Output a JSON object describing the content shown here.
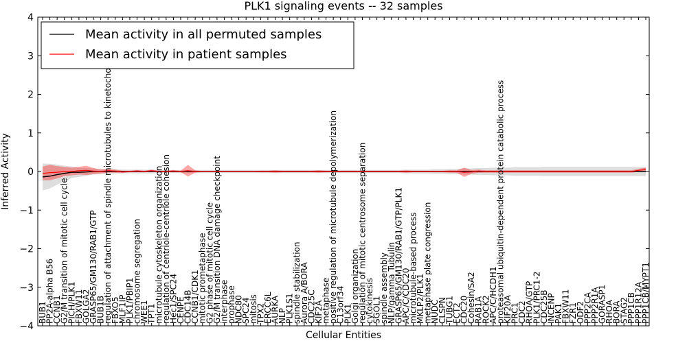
{
  "chart_data": {
    "type": "line",
    "title": "PLK1 signaling events -- 32 samples",
    "xlabel": "Cellular Entities",
    "ylabel": "Inferred Activity",
    "ylim": [
      -4,
      4
    ],
    "yticks": [
      -4,
      -3,
      -2,
      -1,
      0,
      1,
      2,
      3,
      4
    ],
    "legend": {
      "location": "top-left",
      "entries": [
        "Mean activity in all permuted samples",
        "Mean activity in patient samples"
      ]
    },
    "categories": [
      "BUB1",
      "PP2A-alpha B56",
      "CCNB1",
      "G2/M transition of mitotic cell cycle",
      "PICH/PLK1",
      "FBXW11",
      "GOLGA2",
      "GRASP65/GM130/RAB1/GTP",
      "BUB1B",
      "regulation of attachment of spindle microtubules to kinetochore",
      "FBXO5",
      "MLF1IP",
      "PLK1/PBIP1",
      "chromosome segregation",
      "WEE1",
      "TPT1",
      "microtubule cytoskeleton organization",
      "regulation of centriole-centriole cohesion",
      "Hec1/SPC24",
      "CENPE",
      "CDC14B",
      "CCNB1/CDK1",
      "mitotic prometaphase",
      "G2 phase of mitotic cell cycle",
      "G2/M transition DNA damage checkpoint",
      "interphase",
      "prophase",
      "NDC80",
      "SPC24",
      "mitosis",
      "TPX2",
      "ERCC6L",
      "AURKA",
      "NLP",
      "PLK1S1",
      "spindle stabilization",
      "Aurora A/BORA",
      "CDC25C",
      "KIF2A",
      "metaphase",
      "positive regulation of microtubule depolymerization",
      "C13orf34",
      "PLK1",
      "Golgi organization",
      "regulation of mitotic centrosome separation",
      "cytokinesis",
      "SGOL1",
      "spindle assembly",
      "NLP/gamma Tubulin",
      "GRASP65/GM130/RAB1/GTP/PLK1",
      "APC/C/CDC20",
      "microtubule-based process",
      "MKLP2/PLK1",
      "metaphase plate congression",
      "NUDC",
      "CLSPN",
      "TUBG1",
      "ECT2",
      "CDC20",
      "Cohesin/SA2",
      "RAB1A",
      "ROCK2",
      "APC/C/HCDH1",
      "proteasomal ubiquitin-dependent protein catabolic process",
      "KIF20A",
      "PRC1",
      "CDC2",
      "RHOA/GTP",
      "PLK1/PRC1-2",
      "CDC25B",
      "INCENP",
      "PAK1",
      "FBXW11",
      "FZR1",
      "ODF2",
      "PPP2CA",
      "PPP2R1A",
      "GORASP1",
      "RHOA",
      "BORA",
      "STAG2",
      "PPP1CB",
      "PPP1R12A",
      "PPP1CB/MYPT1"
    ],
    "series": [
      {
        "name": "Mean activity in all permuted samples",
        "color": "#000000",
        "values": [
          -0.14,
          -0.12,
          -0.08,
          -0.05,
          -0.02,
          -0.02,
          -0.01,
          0.0,
          0.0,
          0.0,
          0.0,
          0.0,
          0.0,
          0.0,
          0.0,
          0.0,
          0.0,
          0.0,
          0.0,
          0.0,
          0.0,
          0.0,
          0.0,
          0.0,
          0.0,
          0.0,
          0.0,
          0.0,
          0.0,
          0.0,
          0.0,
          0.0,
          0.0,
          0.0,
          0.0,
          0.0,
          0.0,
          0.0,
          0.0,
          0.0,
          0.0,
          0.0,
          0.0,
          0.0,
          0.0,
          0.0,
          0.0,
          0.0,
          0.0,
          0.0,
          0.0,
          0.0,
          0.0,
          0.0,
          0.0,
          0.0,
          0.0,
          0.0,
          0.0,
          0.0,
          0.0,
          0.0,
          0.0,
          0.0,
          0.0,
          0.0,
          0.0,
          0.0,
          0.0,
          0.0,
          0.0,
          0.0,
          0.0,
          0.0,
          0.0,
          0.0,
          0.0,
          0.0,
          0.0,
          0.0,
          0.0,
          0.0,
          0.0,
          0.0
        ],
        "band": [
          0.35,
          0.32,
          0.26,
          0.2,
          0.15,
          0.12,
          0.1,
          0.08,
          0.07,
          0.06,
          0.06,
          0.05,
          0.05,
          0.05,
          0.05,
          0.05,
          0.04,
          0.04,
          0.04,
          0.04,
          0.04,
          0.04,
          0.04,
          0.04,
          0.04,
          0.04,
          0.04,
          0.04,
          0.04,
          0.04,
          0.04,
          0.04,
          0.04,
          0.04,
          0.04,
          0.04,
          0.04,
          0.04,
          0.04,
          0.04,
          0.04,
          0.04,
          0.04,
          0.04,
          0.04,
          0.04,
          0.04,
          0.04,
          0.04,
          0.04,
          0.05,
          0.05,
          0.05,
          0.05,
          0.06,
          0.06,
          0.07,
          0.07,
          0.08,
          0.08,
          0.09,
          0.09,
          0.1,
          0.1,
          0.1,
          0.11,
          0.11,
          0.11,
          0.11,
          0.12,
          0.12,
          0.12,
          0.12,
          0.12,
          0.12,
          0.12,
          0.12,
          0.12,
          0.12,
          0.12,
          0.12,
          0.12,
          0.12,
          0.12
        ]
      },
      {
        "name": "Mean activity in patient samples",
        "color": "#ff0000",
        "values": [
          -0.05,
          -0.03,
          -0.02,
          0.0,
          0.0,
          0.02,
          0.03,
          0.01,
          0.0,
          0.02,
          0.01,
          -0.01,
          0.0,
          0.01,
          0.0,
          0.02,
          0.0,
          0.0,
          0.01,
          0.0,
          0.02,
          0.0,
          0.0,
          0.0,
          0.0,
          0.0,
          0.0,
          0.0,
          0.0,
          0.0,
          0.0,
          0.0,
          0.0,
          0.0,
          0.0,
          0.0,
          0.0,
          0.0,
          0.0,
          0.0,
          0.0,
          0.0,
          0.0,
          0.0,
          0.0,
          0.0,
          0.0,
          0.0,
          0.0,
          0.0,
          0.0,
          0.0,
          0.0,
          0.0,
          0.0,
          0.0,
          0.0,
          0.0,
          -0.02,
          -0.01,
          0.01,
          0.0,
          0.0,
          0.0,
          0.0,
          0.0,
          0.0,
          0.0,
          0.0,
          0.0,
          0.0,
          0.0,
          0.0,
          0.0,
          0.0,
          0.0,
          0.0,
          0.0,
          0.0,
          0.0,
          0.0,
          0.0,
          0.03,
          0.05
        ],
        "band": [
          0.18,
          0.2,
          0.16,
          0.12,
          0.1,
          0.1,
          0.12,
          0.08,
          0.05,
          0.05,
          0.04,
          0.03,
          0.02,
          0.03,
          0.02,
          0.03,
          0.02,
          0.02,
          0.03,
          0.02,
          0.15,
          0.03,
          0.01,
          0.01,
          0.01,
          0.01,
          0.01,
          0.01,
          0.01,
          0.01,
          0.02,
          0.02,
          0.03,
          0.02,
          0.02,
          0.02,
          0.02,
          0.02,
          0.03,
          0.02,
          0.02,
          0.02,
          0.02,
          0.02,
          0.02,
          0.02,
          0.02,
          0.02,
          0.02,
          0.02,
          0.03,
          0.02,
          0.02,
          0.02,
          0.02,
          0.02,
          0.03,
          0.03,
          0.12,
          0.05,
          0.04,
          0.03,
          0.03,
          0.03,
          0.03,
          0.03,
          0.03,
          0.03,
          0.03,
          0.03,
          0.03,
          0.03,
          0.03,
          0.03,
          0.03,
          0.03,
          0.03,
          0.03,
          0.03,
          0.03,
          0.03,
          0.03,
          0.04,
          0.05
        ]
      }
    ]
  }
}
